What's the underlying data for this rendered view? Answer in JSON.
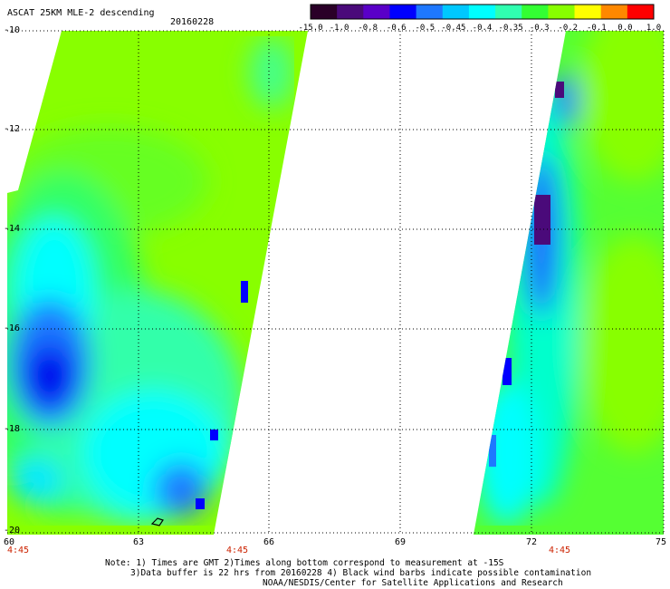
{
  "header": {
    "product": "ASCAT 25KM MLE-2 descending",
    "date": "20160228"
  },
  "colorbar": {
    "labels": [
      "-15.0",
      "-1.0",
      "-0.8",
      "-0.6",
      "-0.5",
      "-0.45",
      "-0.4",
      "-0.35",
      "-0.3",
      "-0.2",
      "-0.1",
      "0.0",
      "1.0"
    ],
    "colors": [
      "#2a0028",
      "#4a0a7a",
      "#5a00c8",
      "#0000ff",
      "#1e78ff",
      "#00c8ff",
      "#00ffff",
      "#30ffb0",
      "#33ff33",
      "#88ff00",
      "#ffff00",
      "#ff8800",
      "#ff0000"
    ]
  },
  "axes": {
    "lat_labels": [
      "-10",
      "-12",
      "-14",
      "-16",
      "-18",
      "-20"
    ],
    "lon_labels": [
      "60",
      "63",
      "66",
      "69",
      "72",
      "75"
    ],
    "time_labels": [
      "4:45",
      "4:45",
      "4:45"
    ]
  },
  "notes": {
    "line1": "Note: 1) Times are GMT 2)Times along bottom correspond to measurement at -15S",
    "line2": "3)Data buffer is 22 hrs from 20160228 4) Black wind barbs indicate possible contamination",
    "line3": "NOAA/NESDIS/Center for Satellite Applications and Research"
  }
}
